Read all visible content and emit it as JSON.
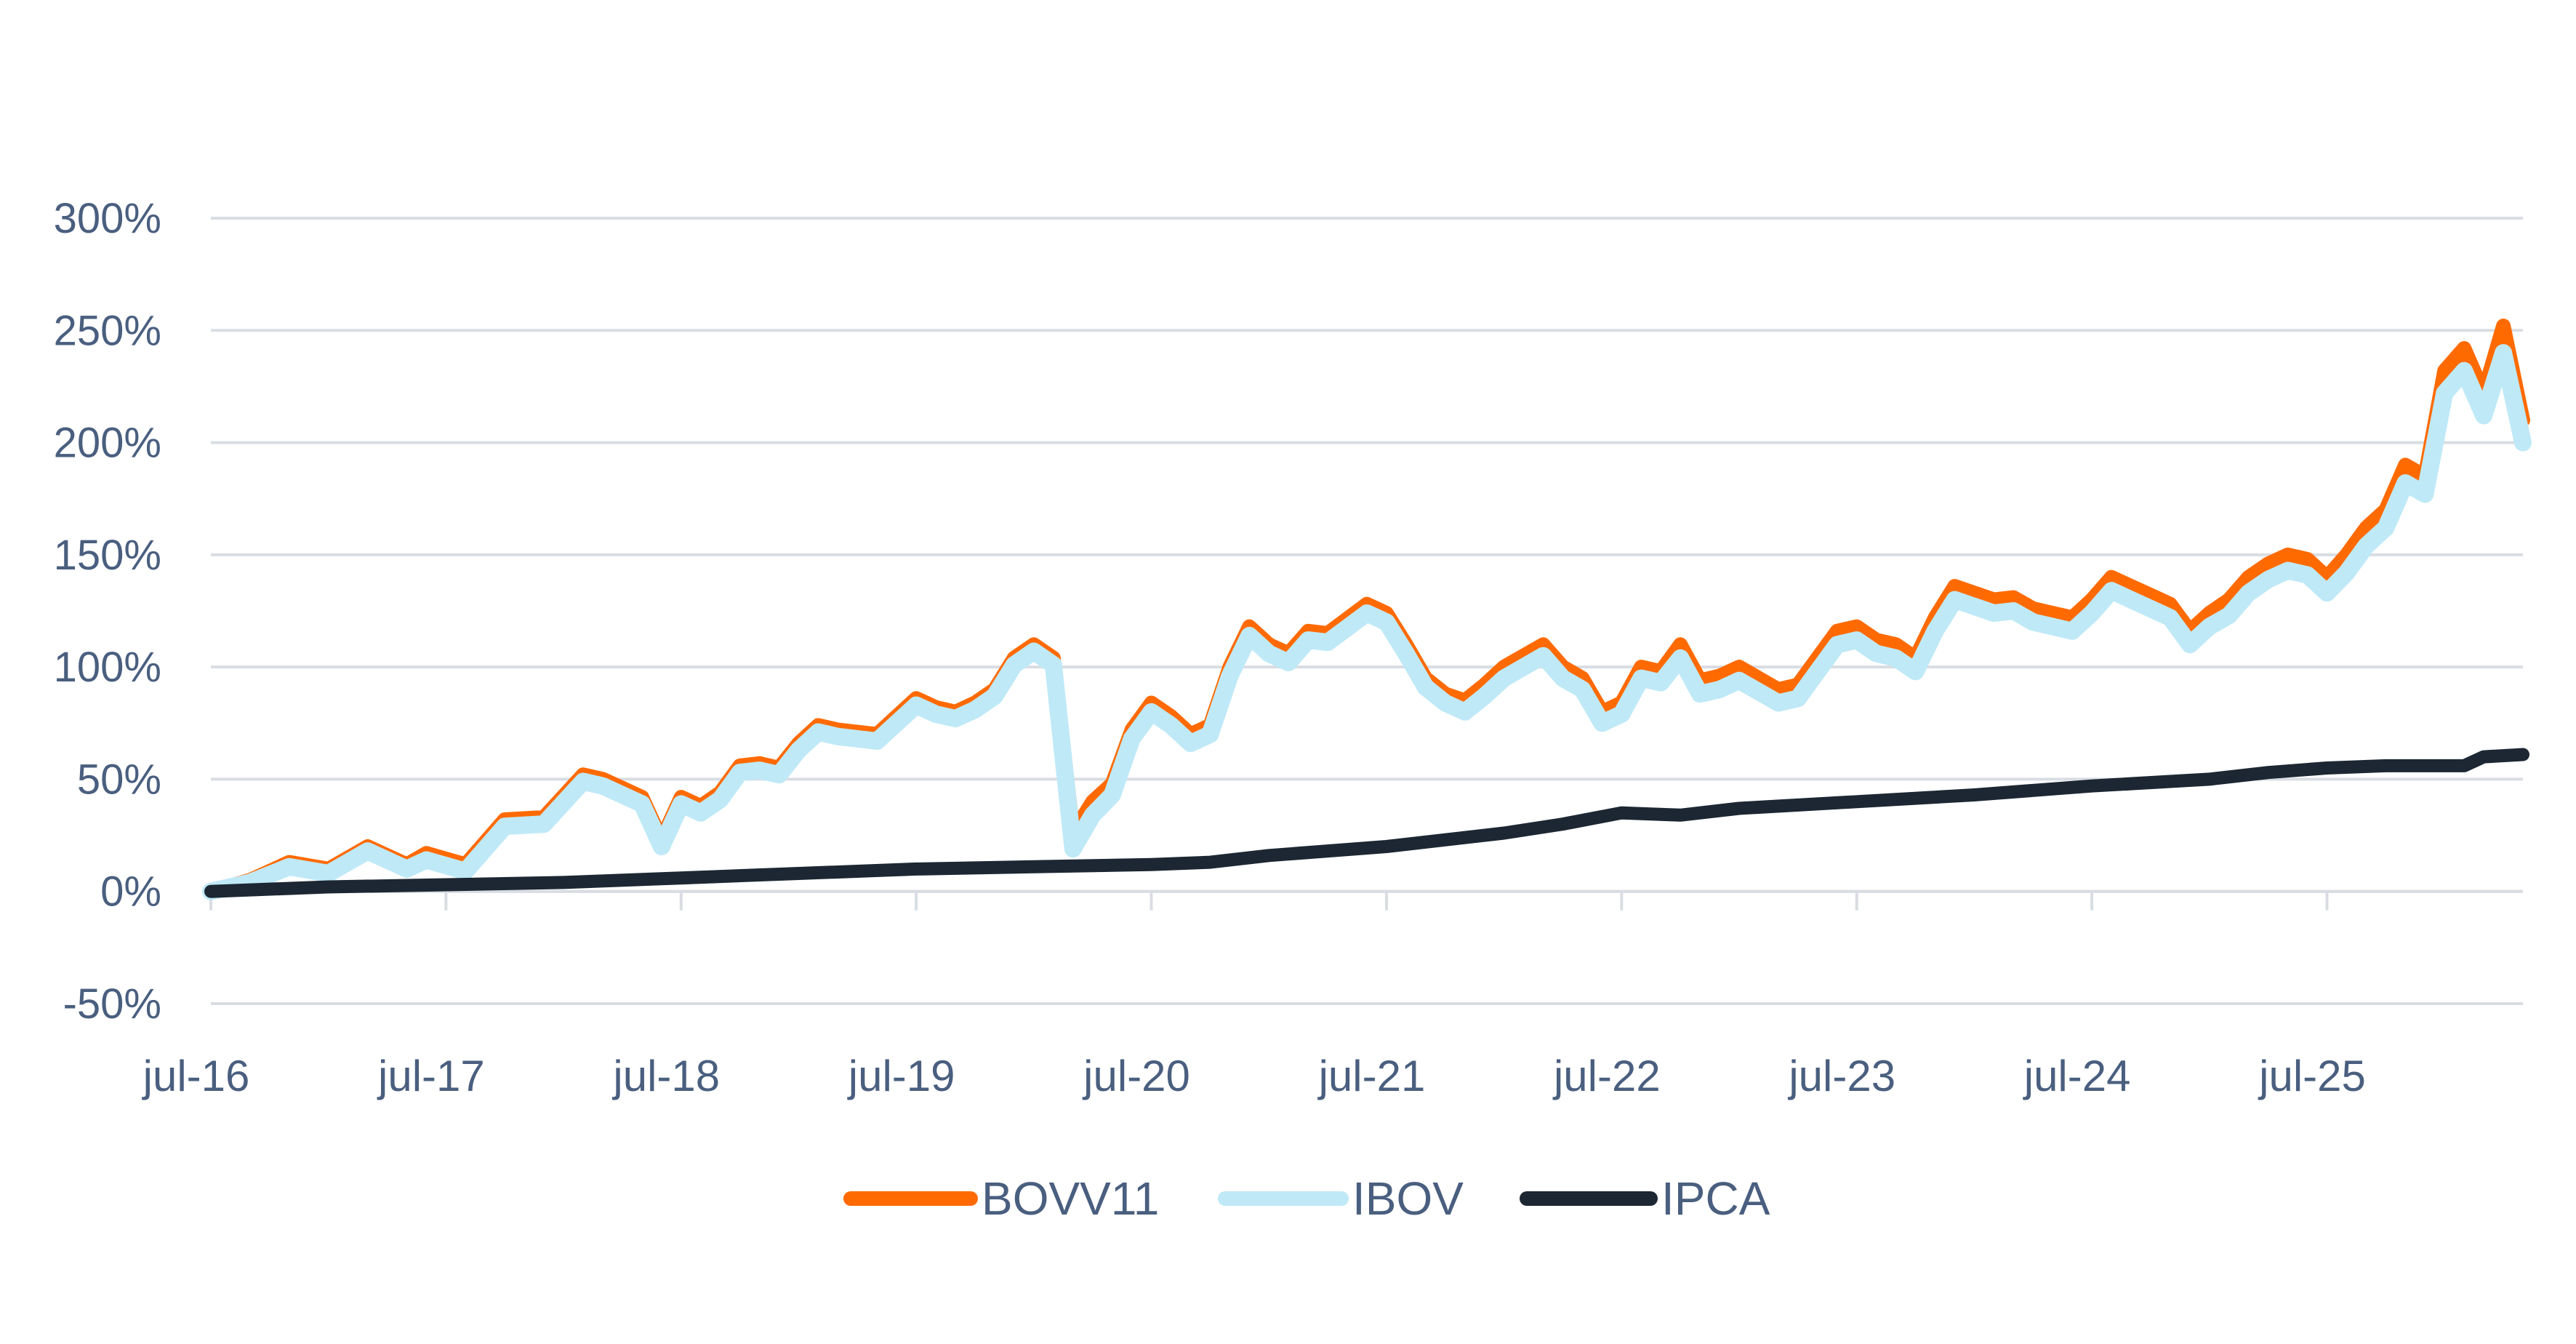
{
  "chart_data": {
    "type": "line",
    "x_tick_labels": [
      "jul-16",
      "jul-17",
      "jul-18",
      "jul-19",
      "jul-20",
      "jul-21",
      "jul-22",
      "jul-23",
      "jul-24",
      "jul-25"
    ],
    "y_tick_labels": [
      "300%",
      "250%",
      "200%",
      "150%",
      "100%",
      "50%",
      "0%",
      "-50%"
    ],
    "y_ticks": [
      300,
      250,
      200,
      150,
      100,
      50,
      0,
      -50
    ],
    "ylim": [
      -50,
      300
    ],
    "x_range": [
      "2016-07",
      "2026-05"
    ],
    "grid": "horizontal",
    "legend_position": "bottom",
    "series": [
      {
        "name": "BOVV11",
        "color": "#ff6a00",
        "points": [
          [
            "2016-07",
            0
          ],
          [
            "2016-09",
            5
          ],
          [
            "2016-11",
            13
          ],
          [
            "2017-01",
            10
          ],
          [
            "2017-03",
            20
          ],
          [
            "2017-05",
            12
          ],
          [
            "2017-06",
            17
          ],
          [
            "2017-08",
            12
          ],
          [
            "2017-10",
            32
          ],
          [
            "2017-12",
            33
          ],
          [
            "2018-02",
            52
          ],
          [
            "2018-03",
            50
          ],
          [
            "2018-05",
            42
          ],
          [
            "2018-06",
            23
          ],
          [
            "2018-07",
            42
          ],
          [
            "2018-08",
            38
          ],
          [
            "2018-09",
            44
          ],
          [
            "2018-10",
            56
          ],
          [
            "2018-11",
            57
          ],
          [
            "2018-12",
            55
          ],
          [
            "2019-01",
            66
          ],
          [
            "2019-02",
            74
          ],
          [
            "2019-03",
            72
          ],
          [
            "2019-05",
            70
          ],
          [
            "2019-06",
            78
          ],
          [
            "2019-07",
            86
          ],
          [
            "2019-08",
            82
          ],
          [
            "2019-09",
            80
          ],
          [
            "2019-10",
            84
          ],
          [
            "2019-11",
            90
          ],
          [
            "2019-12",
            104
          ],
          [
            "2020-01",
            110
          ],
          [
            "2020-02",
            104
          ],
          [
            "2020-03",
            26
          ],
          [
            "2020-04",
            40
          ],
          [
            "2020-05",
            48
          ],
          [
            "2020-06",
            72
          ],
          [
            "2020-07",
            84
          ],
          [
            "2020-08",
            78
          ],
          [
            "2020-09",
            70
          ],
          [
            "2020-10",
            74
          ],
          [
            "2020-11",
            100
          ],
          [
            "2020-12",
            118
          ],
          [
            "2021-01",
            110
          ],
          [
            "2021-02",
            106
          ],
          [
            "2021-03",
            116
          ],
          [
            "2021-04",
            115
          ],
          [
            "2021-06",
            128
          ],
          [
            "2021-07",
            124
          ],
          [
            "2021-08",
            110
          ],
          [
            "2021-09",
            95
          ],
          [
            "2021-10",
            88
          ],
          [
            "2021-11",
            85
          ],
          [
            "2021-12",
            92
          ],
          [
            "2022-01",
            100
          ],
          [
            "2022-03",
            110
          ],
          [
            "2022-04",
            100
          ],
          [
            "2022-05",
            95
          ],
          [
            "2022-06",
            80
          ],
          [
            "2022-07",
            84
          ],
          [
            "2022-08",
            100
          ],
          [
            "2022-09",
            98
          ],
          [
            "2022-10",
            110
          ],
          [
            "2022-11",
            94
          ],
          [
            "2022-12",
            96
          ],
          [
            "2023-01",
            100
          ],
          [
            "2023-03",
            90
          ],
          [
            "2023-04",
            92
          ],
          [
            "2023-05",
            104
          ],
          [
            "2023-06",
            116
          ],
          [
            "2023-07",
            118
          ],
          [
            "2023-08",
            112
          ],
          [
            "2023-09",
            110
          ],
          [
            "2023-10",
            104
          ],
          [
            "2023-11",
            122
          ],
          [
            "2023-12",
            136
          ],
          [
            "2024-01",
            133
          ],
          [
            "2024-02",
            130
          ],
          [
            "2024-03",
            131
          ],
          [
            "2024-04",
            126
          ],
          [
            "2024-05",
            124
          ],
          [
            "2024-06",
            122
          ],
          [
            "2024-07",
            130
          ],
          [
            "2024-08",
            140
          ],
          [
            "2024-09",
            136
          ],
          [
            "2024-10",
            132
          ],
          [
            "2024-11",
            128
          ],
          [
            "2024-12",
            116
          ],
          [
            "2025-01",
            124
          ],
          [
            "2025-02",
            130
          ],
          [
            "2025-03",
            140
          ],
          [
            "2025-04",
            146
          ],
          [
            "2025-05",
            150
          ],
          [
            "2025-06",
            148
          ],
          [
            "2025-07",
            140
          ],
          [
            "2025-08",
            150
          ],
          [
            "2025-09",
            162
          ],
          [
            "2025-10",
            170
          ],
          [
            "2025-11",
            190
          ],
          [
            "2025-12",
            185
          ],
          [
            "2026-01",
            232
          ],
          [
            "2026-02",
            242
          ],
          [
            "2026-03",
            222
          ],
          [
            "2026-04",
            252
          ],
          [
            "2026-05",
            210
          ]
        ]
      },
      {
        "name": "IBOV",
        "color": "#bfe9f7",
        "points": [
          [
            "2016-07",
            0
          ],
          [
            "2016-09",
            4
          ],
          [
            "2016-11",
            11
          ],
          [
            "2017-01",
            8
          ],
          [
            "2017-03",
            18
          ],
          [
            "2017-05",
            10
          ],
          [
            "2017-06",
            14
          ],
          [
            "2017-08",
            9
          ],
          [
            "2017-10",
            29
          ],
          [
            "2017-12",
            30
          ],
          [
            "2018-02",
            49
          ],
          [
            "2018-03",
            47
          ],
          [
            "2018-05",
            39
          ],
          [
            "2018-06",
            20
          ],
          [
            "2018-07",
            39
          ],
          [
            "2018-08",
            35
          ],
          [
            "2018-09",
            41
          ],
          [
            "2018-10",
            53
          ],
          [
            "2018-11",
            54
          ],
          [
            "2018-12",
            52
          ],
          [
            "2019-01",
            63
          ],
          [
            "2019-02",
            71
          ],
          [
            "2019-03",
            69
          ],
          [
            "2019-05",
            67
          ],
          [
            "2019-06",
            75
          ],
          [
            "2019-07",
            83
          ],
          [
            "2019-08",
            79
          ],
          [
            "2019-09",
            77
          ],
          [
            "2019-10",
            81
          ],
          [
            "2019-11",
            87
          ],
          [
            "2019-12",
            101
          ],
          [
            "2020-01",
            107
          ],
          [
            "2020-02",
            101
          ],
          [
            "2020-03",
            19
          ],
          [
            "2020-04",
            34
          ],
          [
            "2020-05",
            43
          ],
          [
            "2020-06",
            68
          ],
          [
            "2020-07",
            80
          ],
          [
            "2020-08",
            74
          ],
          [
            "2020-09",
            66
          ],
          [
            "2020-10",
            70
          ],
          [
            "2020-11",
            96
          ],
          [
            "2020-12",
            114
          ],
          [
            "2021-01",
            106
          ],
          [
            "2021-02",
            102
          ],
          [
            "2021-03",
            112
          ],
          [
            "2021-04",
            111
          ],
          [
            "2021-06",
            124
          ],
          [
            "2021-07",
            120
          ],
          [
            "2021-08",
            106
          ],
          [
            "2021-09",
            91
          ],
          [
            "2021-10",
            84
          ],
          [
            "2021-11",
            80
          ],
          [
            "2021-12",
            87
          ],
          [
            "2022-01",
            95
          ],
          [
            "2022-03",
            105
          ],
          [
            "2022-04",
            95
          ],
          [
            "2022-05",
            90
          ],
          [
            "2022-06",
            75
          ],
          [
            "2022-07",
            79
          ],
          [
            "2022-08",
            95
          ],
          [
            "2022-09",
            93
          ],
          [
            "2022-10",
            104
          ],
          [
            "2022-11",
            88
          ],
          [
            "2022-12",
            90
          ],
          [
            "2023-01",
            94
          ],
          [
            "2023-03",
            84
          ],
          [
            "2023-04",
            86
          ],
          [
            "2023-05",
            98
          ],
          [
            "2023-06",
            110
          ],
          [
            "2023-07",
            112
          ],
          [
            "2023-08",
            106
          ],
          [
            "2023-09",
            104
          ],
          [
            "2023-10",
            98
          ],
          [
            "2023-11",
            116
          ],
          [
            "2023-12",
            130
          ],
          [
            "2024-01",
            127
          ],
          [
            "2024-02",
            124
          ],
          [
            "2024-03",
            125
          ],
          [
            "2024-04",
            120
          ],
          [
            "2024-05",
            118
          ],
          [
            "2024-06",
            116
          ],
          [
            "2024-07",
            124
          ],
          [
            "2024-08",
            134
          ],
          [
            "2024-09",
            130
          ],
          [
            "2024-10",
            126
          ],
          [
            "2024-11",
            122
          ],
          [
            "2024-12",
            110
          ],
          [
            "2025-01",
            118
          ],
          [
            "2025-02",
            123
          ],
          [
            "2025-03",
            133
          ],
          [
            "2025-04",
            139
          ],
          [
            "2025-05",
            143
          ],
          [
            "2025-06",
            141
          ],
          [
            "2025-07",
            133
          ],
          [
            "2025-08",
            142
          ],
          [
            "2025-09",
            154
          ],
          [
            "2025-10",
            162
          ],
          [
            "2025-11",
            182
          ],
          [
            "2025-12",
            177
          ],
          [
            "2026-01",
            222
          ],
          [
            "2026-02",
            232
          ],
          [
            "2026-03",
            212
          ],
          [
            "2026-04",
            240
          ],
          [
            "2026-05",
            200
          ]
        ]
      },
      {
        "name": "IPCA",
        "color": "#1c2733",
        "points": [
          [
            "2016-07",
            0
          ],
          [
            "2017-01",
            2
          ],
          [
            "2017-07",
            3
          ],
          [
            "2018-01",
            4
          ],
          [
            "2018-07",
            6
          ],
          [
            "2019-01",
            8
          ],
          [
            "2019-07",
            10
          ],
          [
            "2020-01",
            11
          ],
          [
            "2020-07",
            12
          ],
          [
            "2020-10",
            13
          ],
          [
            "2021-01",
            16
          ],
          [
            "2021-07",
            20
          ],
          [
            "2022-01",
            26
          ],
          [
            "2022-04",
            30
          ],
          [
            "2022-07",
            35
          ],
          [
            "2022-10",
            34
          ],
          [
            "2023-01",
            37
          ],
          [
            "2023-07",
            40
          ],
          [
            "2024-01",
            43
          ],
          [
            "2024-07",
            47
          ],
          [
            "2025-01",
            50
          ],
          [
            "2025-04",
            53
          ],
          [
            "2025-07",
            55
          ],
          [
            "2025-10",
            56
          ],
          [
            "2026-02",
            56
          ],
          [
            "2026-03",
            60
          ],
          [
            "2026-05",
            61
          ]
        ]
      }
    ]
  }
}
